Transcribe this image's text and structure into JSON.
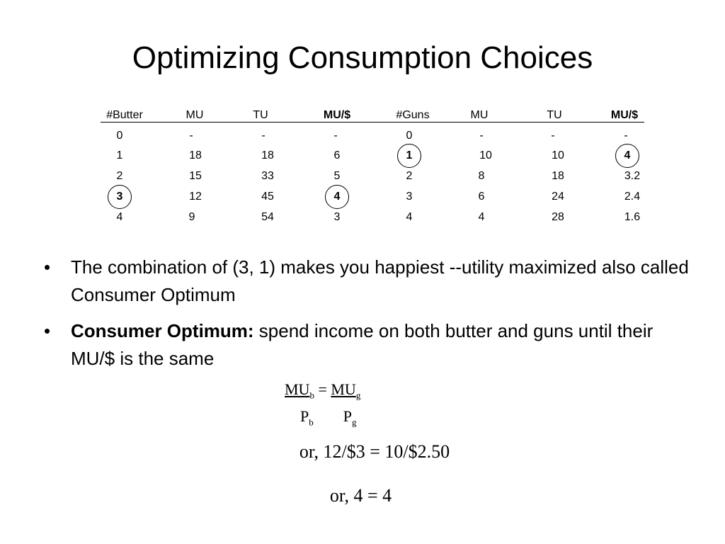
{
  "title": "Optimizing Consumption Choices",
  "table": {
    "headers": [
      "#Butter",
      "MU",
      "TU",
      "MU/$",
      "#Guns",
      "MU",
      "TU",
      "MU/$"
    ],
    "rows": [
      [
        "0",
        "-",
        "-",
        "-",
        "0",
        "-",
        "-",
        "-"
      ],
      [
        "1",
        "18",
        "18",
        "6",
        "1",
        "10",
        "10",
        "4"
      ],
      [
        "2",
        "15",
        "33",
        "5",
        "2",
        "8",
        "18",
        "3.2"
      ],
      [
        "3",
        "12",
        "45",
        "4",
        "3",
        "6",
        "24",
        "2.4"
      ],
      [
        "4",
        "9",
        "54",
        "3",
        "4",
        "4",
        "28",
        "1.6"
      ]
    ]
  },
  "bullets": {
    "b1": "The combination of (3, 1) makes you happiest --utility maximized also called Consumer Optimum",
    "b2_bold": "Consumer Optimum:",
    "b2_rest": " spend income on both butter and guns until their MU/$ is the same",
    "marker": "•"
  },
  "equation": {
    "mu": "MU",
    "sub_b": "b",
    "eq": " = ",
    "sub_g": "g",
    "p": "P",
    "line2": "or, 12/$3 = 10/$2.50",
    "line3": "or, 4 = 4"
  }
}
